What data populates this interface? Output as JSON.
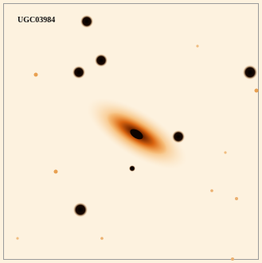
{
  "label": "UGC03984"
}
